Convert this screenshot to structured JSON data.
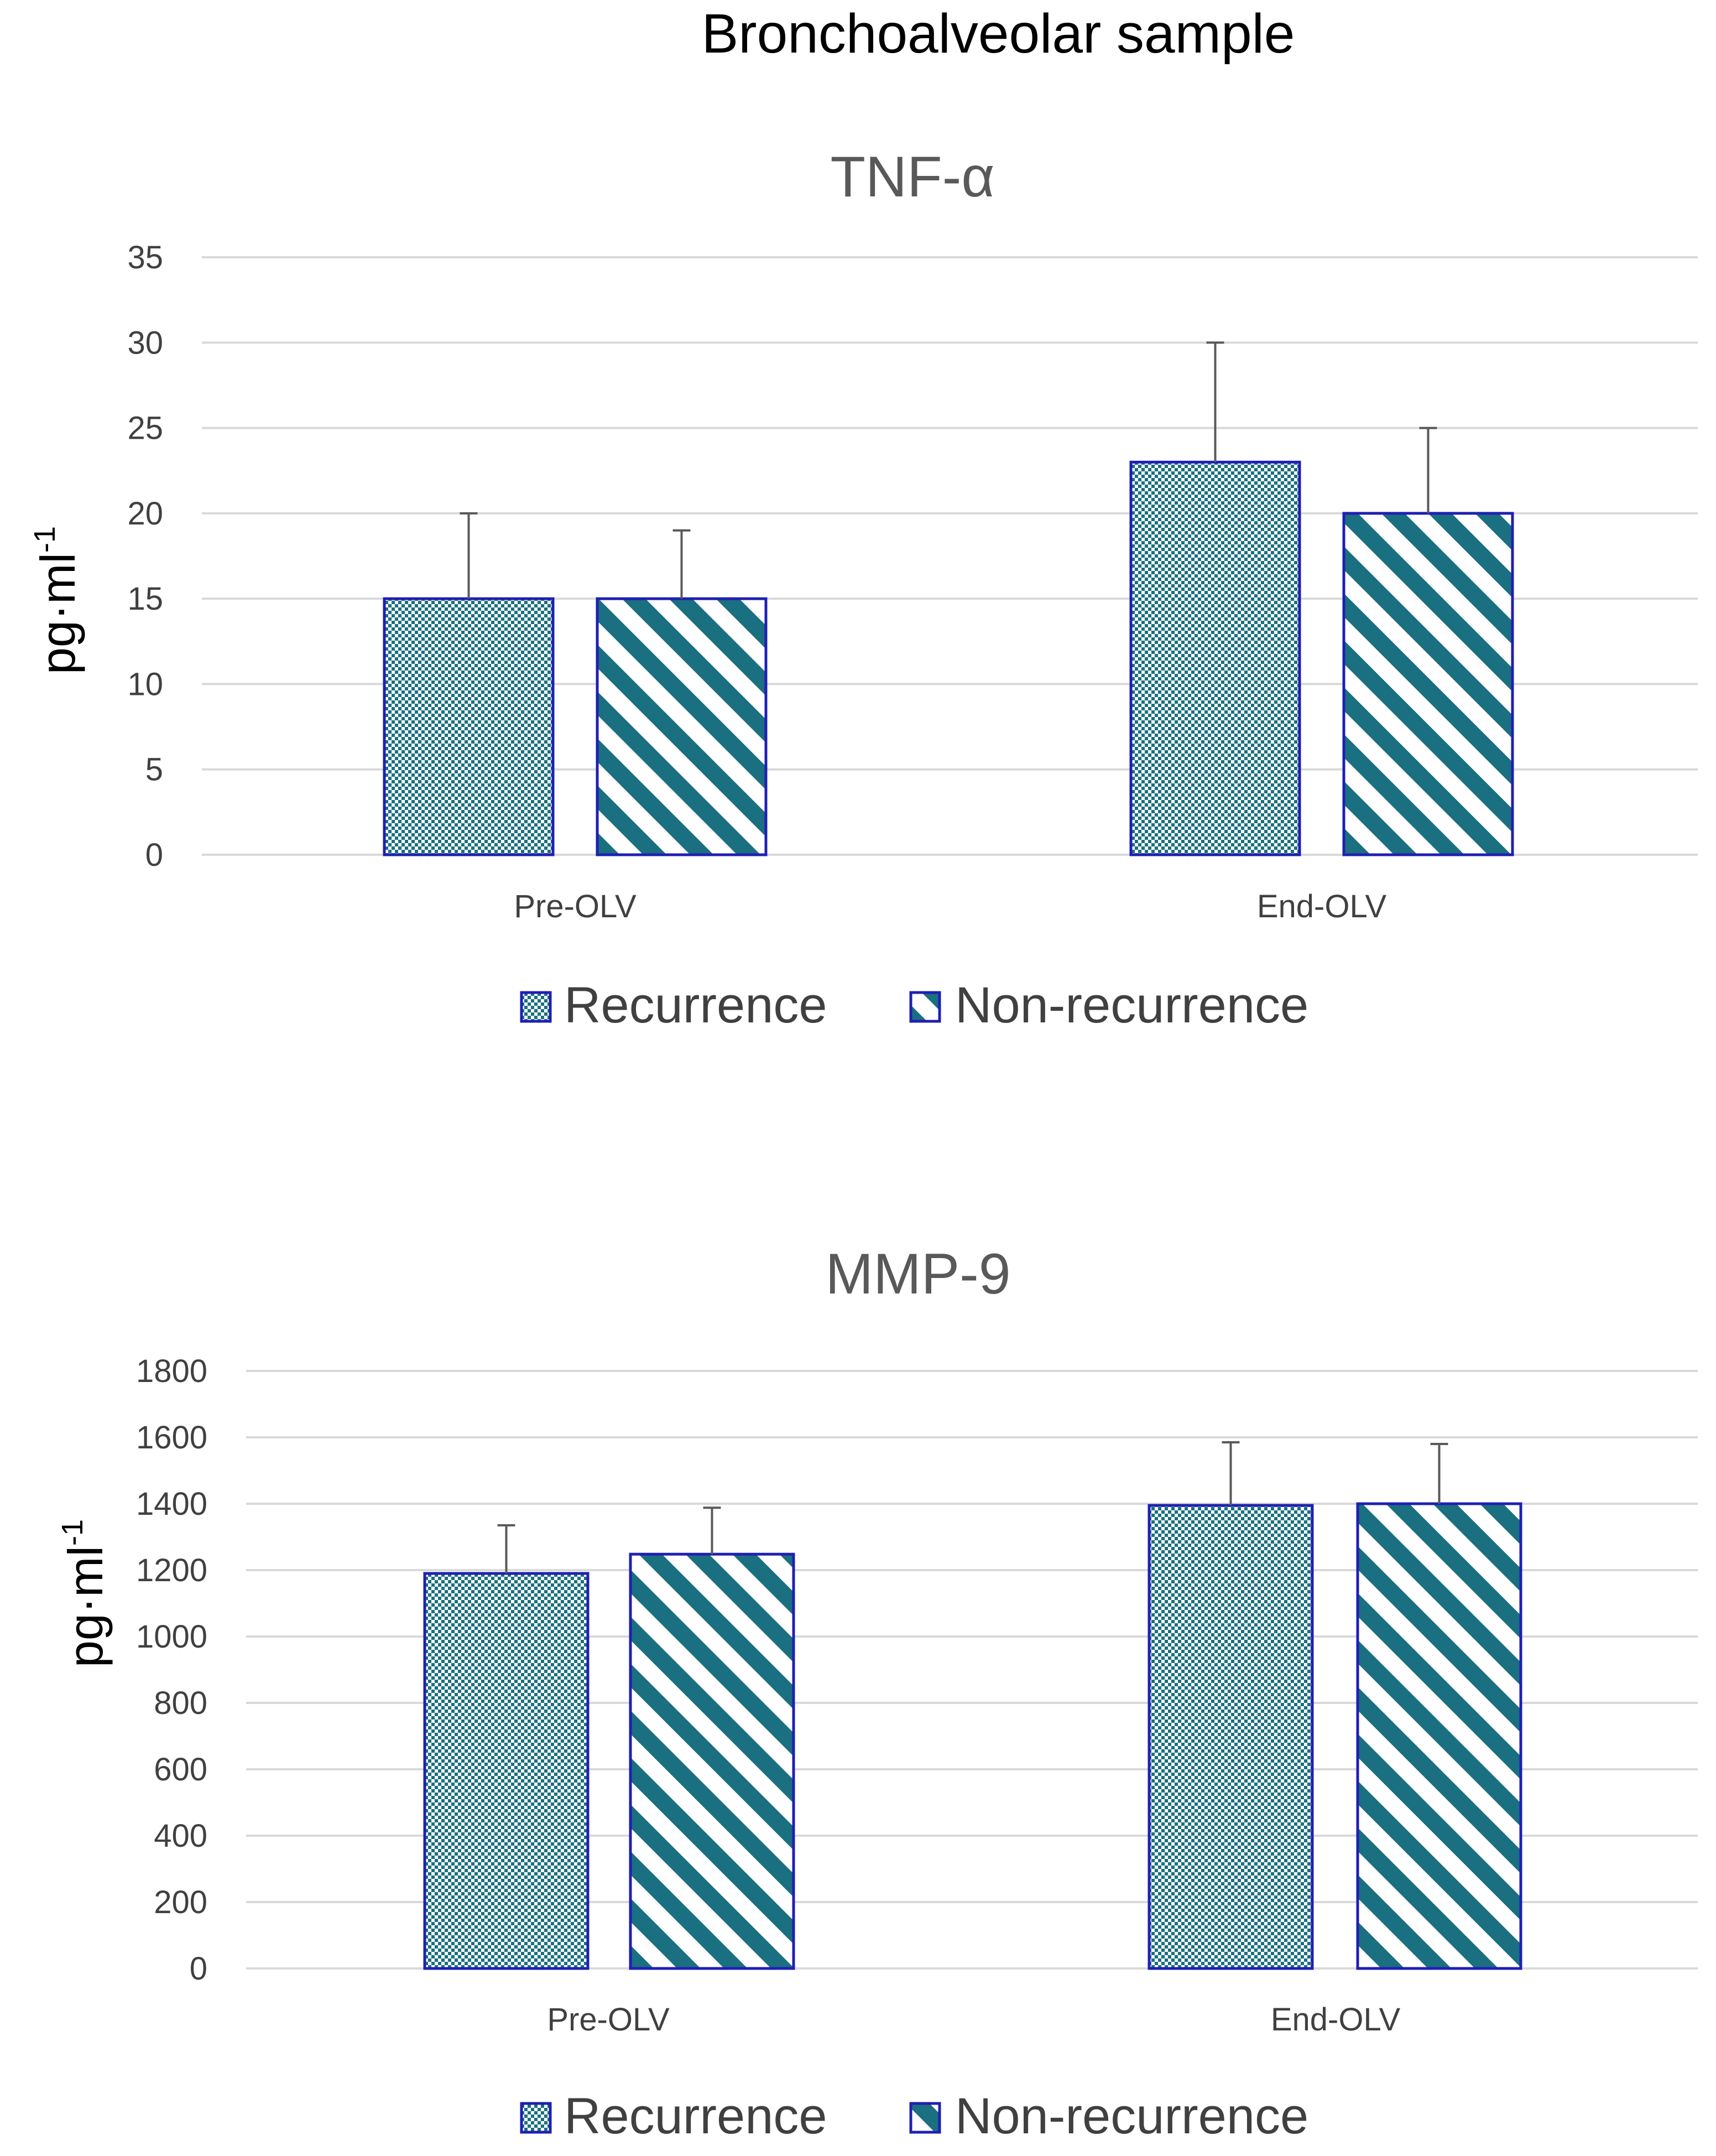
{
  "figure_title": "Bronchoalveolar sample",
  "colors": {
    "teal": "#1a6f80",
    "bar_border": "#1f1fb4",
    "grid": "#d9d9d9",
    "error_bar": "#595959"
  },
  "chart_data": [
    {
      "type": "bar",
      "title": "TNF-α",
      "ylabel_base": "pg·ml",
      "ylabel_sup": "-1",
      "categories": [
        "Pre-OLV",
        "End-OLV"
      ],
      "ylim": [
        0,
        35
      ],
      "ytick_step": 5,
      "yticks": [
        "0",
        "5",
        "10",
        "15",
        "20",
        "25",
        "30",
        "35"
      ],
      "series": [
        {
          "name": "Recurrence",
          "pattern": "checker",
          "values": [
            15,
            23
          ],
          "errors": [
            5,
            7
          ]
        },
        {
          "name": "Non-recurrence",
          "pattern": "stripes",
          "values": [
            15,
            20
          ],
          "errors": [
            4,
            5
          ]
        }
      ],
      "legend": [
        "Recurrence",
        "Non-recurrence"
      ],
      "grid": true
    },
    {
      "type": "bar",
      "title": "MMP-9",
      "ylabel_base": "pg·ml",
      "ylabel_sup": "-1",
      "categories": [
        "Pre-OLV",
        "End-OLV"
      ],
      "ylim": [
        0,
        1800
      ],
      "ytick_step": 200,
      "yticks": [
        "0",
        "200",
        "400",
        "600",
        "800",
        "1000",
        "1200",
        "1400",
        "1600",
        "1800"
      ],
      "series": [
        {
          "name": "Recurrence",
          "pattern": "checker",
          "values": [
            1190,
            1395
          ],
          "errors": [
            145,
            190
          ]
        },
        {
          "name": "Non-recurrence",
          "pattern": "stripes",
          "values": [
            1248,
            1400
          ],
          "errors": [
            140,
            180
          ]
        }
      ],
      "legend": [
        "Recurrence",
        "Non-recurrence"
      ],
      "grid": true
    }
  ]
}
